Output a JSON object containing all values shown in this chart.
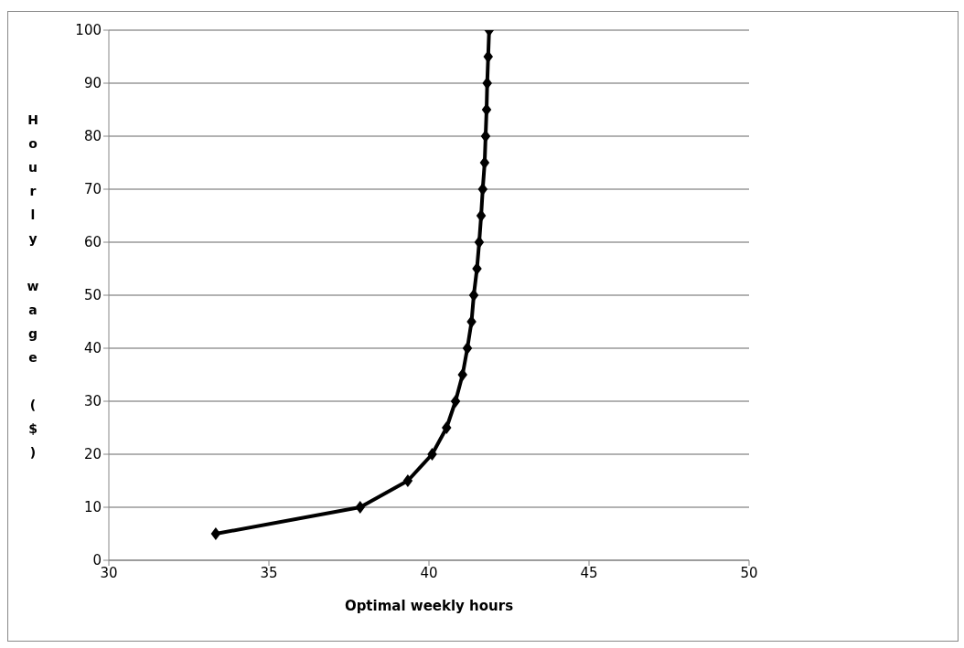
{
  "chart_data": {
    "type": "line",
    "xlabel": "Optimal weekly hours",
    "ylabel": "Hourly wage ($)",
    "x": [
      33.34,
      37.85,
      39.34,
      40.1,
      40.55,
      40.83,
      41.05,
      41.2,
      41.33,
      41.4,
      41.5,
      41.57,
      41.63,
      41.68,
      41.74,
      41.77,
      41.8,
      41.82,
      41.85,
      41.88
    ],
    "values": [
      5,
      10,
      15,
      20,
      25,
      30,
      35,
      40,
      45,
      50,
      55,
      60,
      65,
      70,
      75,
      80,
      85,
      90,
      95,
      100
    ],
    "color": "#000000",
    "xlim": [
      30,
      50
    ],
    "xticks": [
      30,
      35,
      40,
      45,
      50
    ],
    "ylim": [
      0,
      100
    ],
    "yticks": [
      0,
      10,
      20,
      30,
      40,
      50,
      60,
      70,
      80,
      90,
      100
    ],
    "grid": "y",
    "marker": "diamond",
    "line_style": "solid"
  }
}
